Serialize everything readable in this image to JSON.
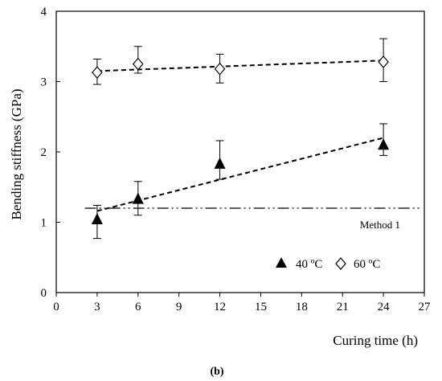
{
  "chart_data": {
    "type": "scatter",
    "xlabel": "Curing time (h)",
    "ylabel": "Bending stiffness (GPa)",
    "xlim": [
      0,
      27
    ],
    "ylim": [
      0,
      4
    ],
    "xticks": [
      0,
      3,
      6,
      9,
      12,
      15,
      18,
      21,
      24,
      27
    ],
    "yticks": [
      0,
      1,
      2,
      3,
      4
    ],
    "grid": false,
    "legend_position": "bottom-right",
    "series": [
      {
        "name": "40 ºC",
        "marker": "filled-triangle",
        "color": "#000000",
        "x": [
          3,
          6,
          12,
          24
        ],
        "y": [
          1.04,
          1.33,
          1.83,
          2.1
        ],
        "err_low": [
          0.27,
          0.23,
          0.22,
          0.15
        ],
        "err_high": [
          0.2,
          0.25,
          0.33,
          0.3
        ],
        "trend": {
          "x": [
            3,
            24
          ],
          "y": [
            1.16,
            2.2
          ],
          "style": "dashed"
        }
      },
      {
        "name": "60 ºC",
        "marker": "open-diamond",
        "color": "#000000",
        "x": [
          3,
          6,
          12,
          24
        ],
        "y": [
          3.13,
          3.25,
          3.18,
          3.28
        ],
        "err_low": [
          0.17,
          0.13,
          0.2,
          0.28
        ],
        "err_high": [
          0.19,
          0.25,
          0.21,
          0.33
        ],
        "trend": {
          "x": [
            3,
            24
          ],
          "y": [
            3.15,
            3.3
          ],
          "style": "dashed"
        }
      }
    ],
    "reference_lines": [
      {
        "label": "Method 1",
        "y": 1.2,
        "x_start": 2.1,
        "x_end": 27,
        "style": "dash-dot-dot"
      }
    ],
    "caption": "(b)"
  }
}
